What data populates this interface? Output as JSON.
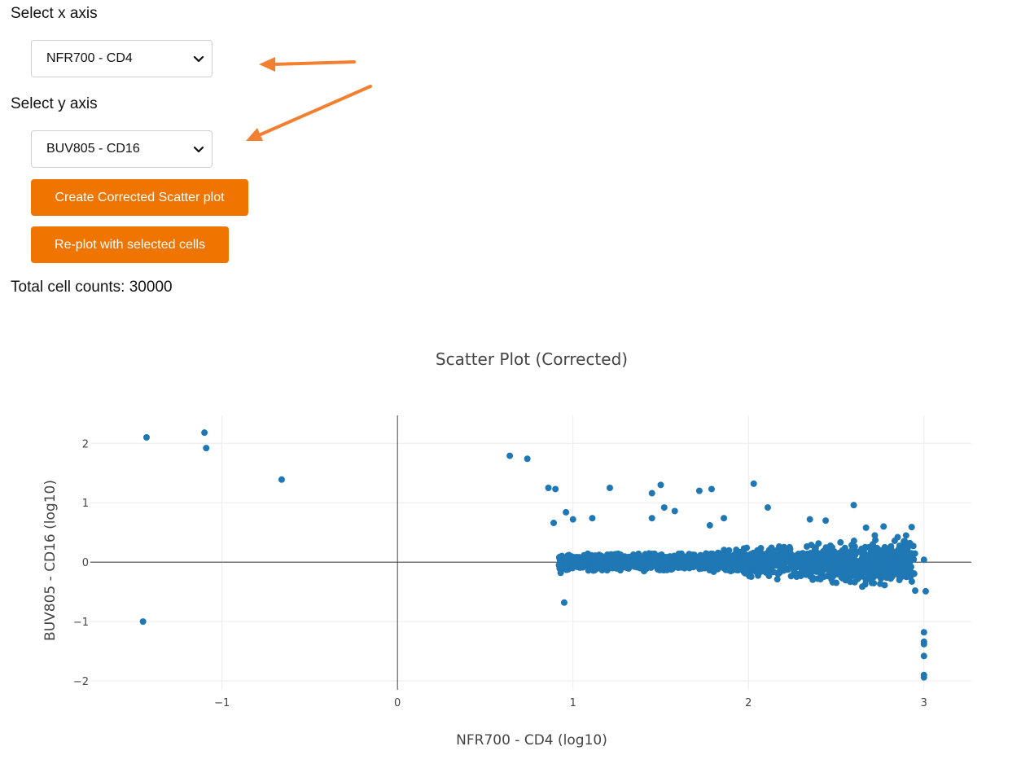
{
  "controls": {
    "x_label": "Select x axis",
    "x_value": "NFR700 - CD4",
    "y_label": "Select y axis",
    "y_value": "BUV805 - CD16",
    "create_button": "Create Corrected Scatter plot",
    "replot_button": "Re-plot with selected cells",
    "counts_text": "Total cell counts: 30000"
  },
  "annotations": {
    "arrow_color": "#f28030",
    "arrow_count": 2
  },
  "chart_data": {
    "type": "scatter",
    "title": "Scatter Plot (Corrected)",
    "xlabel": "NFR700 - CD4 (log10)",
    "ylabel": "BUV805 - CD16 (log10)",
    "xlim": [
      -1.75,
      3.27
    ],
    "ylim": [
      -2.15,
      2.47
    ],
    "xticks": [
      -1,
      0,
      1,
      2,
      3
    ],
    "xtick_labels": [
      "−1",
      "0",
      "1",
      "2",
      "3"
    ],
    "yticks": [
      -2,
      -1,
      0,
      1,
      2
    ],
    "ytick_labels": [
      "−2",
      "−1",
      "0",
      "1",
      "2"
    ],
    "grid": true,
    "marker_color": "#1f77b4",
    "series": [
      {
        "name": "",
        "cluster": {
          "x_range": [
            0.92,
            2.95
          ],
          "y_center": 0.0,
          "y_spread": 0.09,
          "count": 1800
        },
        "points": [
          {
            "x": -1.43,
            "y": 2.1
          },
          {
            "x": -1.1,
            "y": 2.18
          },
          {
            "x": -1.09,
            "y": 1.92
          },
          {
            "x": -0.66,
            "y": 1.39
          },
          {
            "x": -1.45,
            "y": -1.0
          },
          {
            "x": 0.64,
            "y": 1.79
          },
          {
            "x": 0.74,
            "y": 1.74
          },
          {
            "x": 0.86,
            "y": 1.25
          },
          {
            "x": 0.9,
            "y": 1.23
          },
          {
            "x": 1.21,
            "y": 1.25
          },
          {
            "x": 1.5,
            "y": 1.3
          },
          {
            "x": 1.45,
            "y": 1.16
          },
          {
            "x": 1.72,
            "y": 1.2
          },
          {
            "x": 1.79,
            "y": 1.23
          },
          {
            "x": 2.03,
            "y": 1.32
          },
          {
            "x": 0.96,
            "y": 0.84
          },
          {
            "x": 1.0,
            "y": 0.72
          },
          {
            "x": 1.11,
            "y": 0.74
          },
          {
            "x": 0.89,
            "y": 0.66
          },
          {
            "x": 1.52,
            "y": 0.92
          },
          {
            "x": 1.58,
            "y": 0.86
          },
          {
            "x": 1.45,
            "y": 0.74
          },
          {
            "x": 1.78,
            "y": 0.62
          },
          {
            "x": 1.86,
            "y": 0.74
          },
          {
            "x": 2.11,
            "y": 0.92
          },
          {
            "x": 2.6,
            "y": 0.96
          },
          {
            "x": 2.35,
            "y": 0.72
          },
          {
            "x": 2.44,
            "y": 0.7
          },
          {
            "x": 2.67,
            "y": 0.58
          },
          {
            "x": 2.77,
            "y": 0.6
          },
          {
            "x": 2.93,
            "y": 0.59
          },
          {
            "x": 2.85,
            "y": 0.42
          },
          {
            "x": 2.72,
            "y": 0.45
          },
          {
            "x": 2.92,
            "y": 0.32
          },
          {
            "x": 2.88,
            "y": 0.1
          },
          {
            "x": 3.0,
            "y": 0.04
          },
          {
            "x": 2.95,
            "y": -0.48
          },
          {
            "x": 3.01,
            "y": -0.49
          },
          {
            "x": 2.86,
            "y": -0.3
          },
          {
            "x": 2.83,
            "y": -0.2
          },
          {
            "x": 2.66,
            "y": -0.25
          },
          {
            "x": 2.58,
            "y": -0.33
          },
          {
            "x": 2.48,
            "y": -0.34
          },
          {
            "x": 0.95,
            "y": -0.68
          },
          {
            "x": 0.93,
            "y": -0.18
          },
          {
            "x": 3.0,
            "y": -1.18
          },
          {
            "x": 3.0,
            "y": -1.34
          },
          {
            "x": 3.0,
            "y": -1.38
          },
          {
            "x": 3.0,
            "y": -1.58
          },
          {
            "x": 3.0,
            "y": -1.9
          },
          {
            "x": 3.0,
            "y": -1.94
          }
        ]
      }
    ]
  }
}
